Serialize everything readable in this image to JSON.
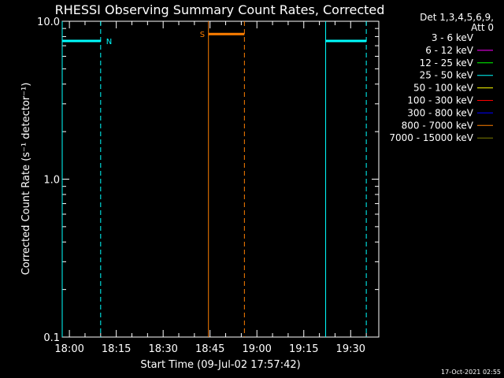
{
  "chart_data": {
    "type": "line",
    "title": "RHESSI Observing Summary Count Rates, Corrected",
    "xlabel": "Start Time (09-Jul-02 17:57:42)",
    "ylabel": "Corrected Count Rate (s⁻¹ detector⁻¹)",
    "yscale": "log",
    "ylim": [
      0.1,
      10.0
    ],
    "xlim": [
      "17:57:42",
      "19:39:00"
    ],
    "y_ticks": [
      "0.1",
      "1.0",
      "10.0"
    ],
    "x_ticks": [
      "18:00",
      "18:15",
      "18:30",
      "18:45",
      "19:00",
      "19:15",
      "19:30"
    ],
    "detector_info": [
      "Det 1,3,4,5,6,9,",
      "Att 0"
    ],
    "legend_position": "right",
    "grid": false,
    "colors": {
      "background": "#000000",
      "foreground": "#ffffff",
      "night": "#00ffff",
      "saa": "#ff7f00"
    },
    "series": [
      {
        "name": "3 - 6 keV",
        "color": "#000000",
        "values": []
      },
      {
        "name": "6 - 12 keV",
        "color": "#ff00ff",
        "values": []
      },
      {
        "name": "12 - 25 keV",
        "color": "#00ff00",
        "values": []
      },
      {
        "name": "25 - 50 keV",
        "color": "#00ffff",
        "values": []
      },
      {
        "name": "50 - 100 keV",
        "color": "#ffff00",
        "values": []
      },
      {
        "name": "100 - 300 keV",
        "color": "#ff0000",
        "values": []
      },
      {
        "name": "300 - 800 keV",
        "color": "#0000ff",
        "values": []
      },
      {
        "name": "800 - 7000 keV",
        "color": "#ff7f00",
        "values": []
      },
      {
        "name": "7000 - 15000 keV",
        "color": "#7f7f00",
        "values": []
      }
    ],
    "intervals": [
      {
        "label": "N",
        "kind": "night",
        "start": "17:57:42",
        "end": "18:10:00",
        "level": 7.5
      },
      {
        "label": "S",
        "kind": "saa",
        "start": "18:44:30",
        "end": "18:56:00",
        "level": 8.3
      },
      {
        "label": "",
        "kind": "night",
        "start": "19:22:00",
        "end": "19:35:00",
        "level": 7.5
      }
    ],
    "footer_date": "17-Oct-2021 02:55"
  }
}
